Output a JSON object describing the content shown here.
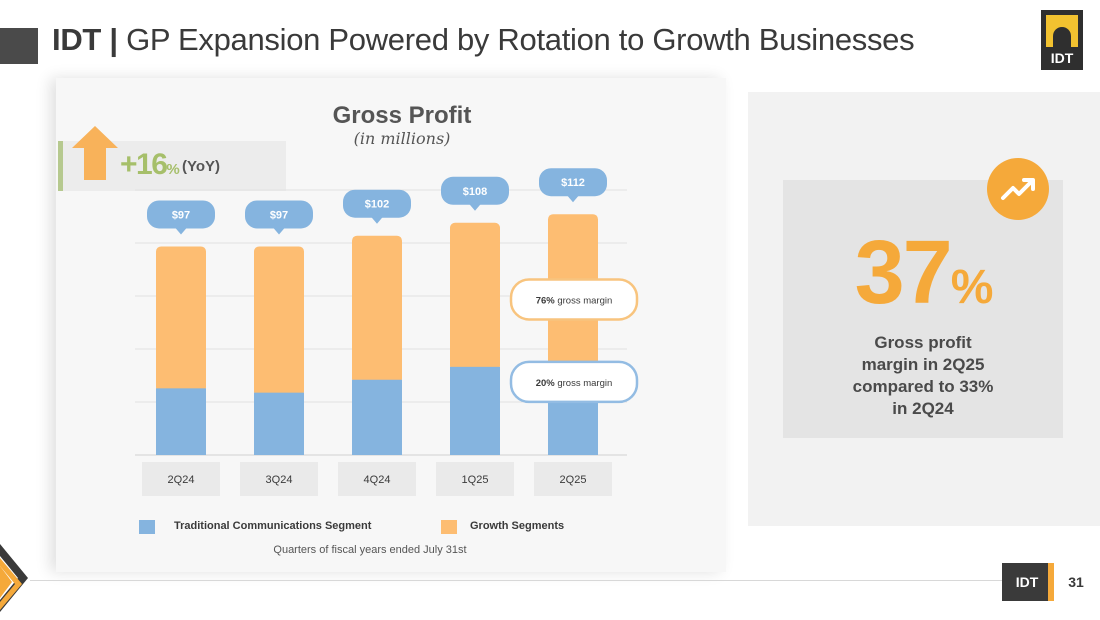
{
  "header": {
    "brand": "IDT",
    "separator": "|",
    "title": "GP Expansion Powered by Rotation to Growth Businesses"
  },
  "logo_text": "IDT",
  "yoy": {
    "value": "+16",
    "unit": "%",
    "label": "(YoY)"
  },
  "chart_data": {
    "type": "bar",
    "title": "Gross Profit",
    "subtitle": "(in millions)",
    "categories": [
      "2Q24",
      "3Q24",
      "4Q24",
      "1Q25",
      "2Q25"
    ],
    "totals": [
      97,
      97,
      102,
      108,
      112
    ],
    "total_labels": [
      "$97",
      "$97",
      "$102",
      "$108",
      "$112"
    ],
    "series": [
      {
        "name": "Traditional Communications Segment",
        "color": "#85b4df",
        "values": [
          31,
          29,
          35,
          41,
          42
        ]
      },
      {
        "name": "Growth Segments",
        "color": "#fdbd72",
        "values": [
          66,
          68,
          67,
          67,
          70
        ]
      }
    ],
    "stacked": true,
    "annotations": [
      {
        "pct": "76%",
        "text": "gross margin",
        "category": "2Q25",
        "series": "Growth Segments"
      },
      {
        "pct": "20%",
        "text": "gross margin",
        "category": "2Q25",
        "series": "Traditional Communications Segment"
      }
    ],
    "footnote": "Quarters of fiscal years ended July 31st",
    "legend_position": "bottom",
    "grid": true
  },
  "highlight": {
    "value": "37",
    "unit": "%",
    "lines": [
      "Gross profit",
      "margin in 2Q25",
      "compared to 33%",
      "in 2Q24"
    ]
  },
  "footer": {
    "badge": "IDT",
    "page": "31"
  },
  "colors": {
    "accent": "#f5a93a",
    "traditional": "#85b4df",
    "growth": "#fdbd72",
    "label_bubble": "#85b4df"
  }
}
